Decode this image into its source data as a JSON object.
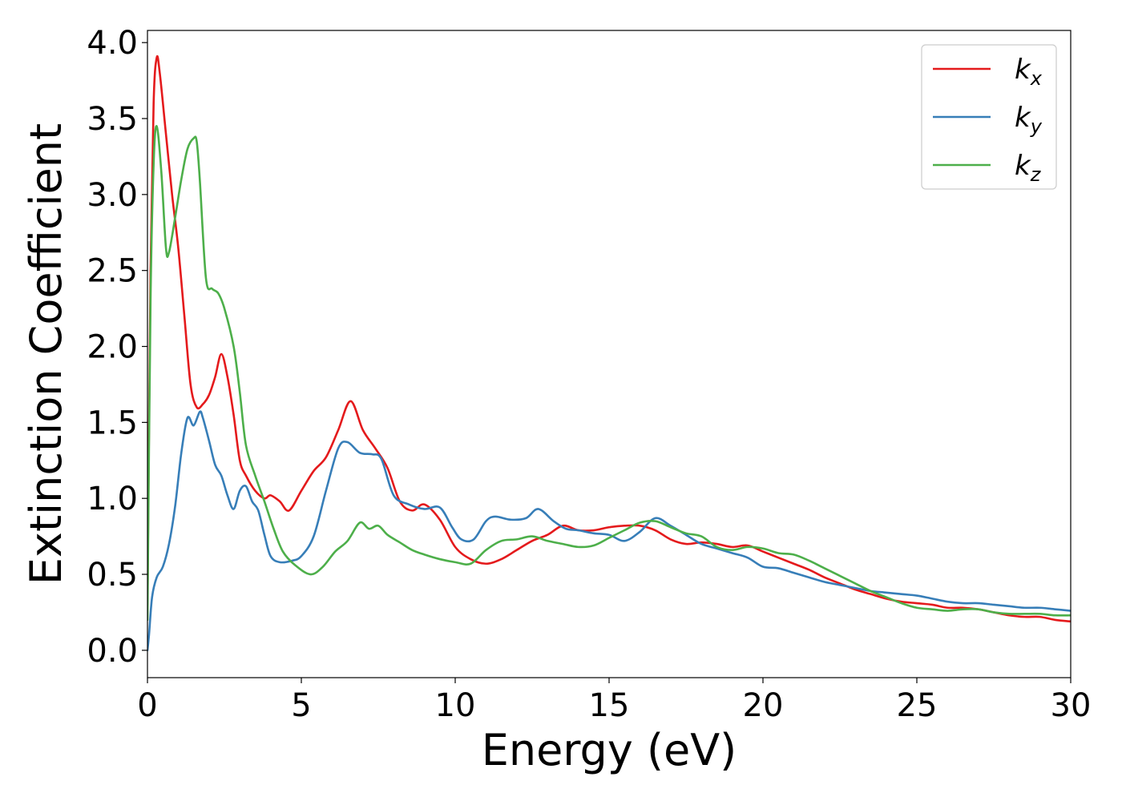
{
  "chart_data": {
    "type": "line",
    "title": "",
    "xlabel": "Energy (eV)",
    "ylabel": "Extinction Coefficient",
    "xlim": [
      0,
      30
    ],
    "ylim": [
      -0.18,
      4.08
    ],
    "xticks": [
      0,
      5,
      10,
      15,
      20,
      25,
      30
    ],
    "yticks": [
      0.0,
      0.5,
      1.0,
      1.5,
      2.0,
      2.5,
      3.0,
      3.5,
      4.0
    ],
    "xtick_labels": [
      "0",
      "5",
      "10",
      "15",
      "20",
      "25",
      "30"
    ],
    "ytick_labels": [
      "0.0",
      "0.5",
      "1.0",
      "1.5",
      "2.0",
      "2.5",
      "3.0",
      "3.5",
      "4.0"
    ],
    "grid": false,
    "legend_position": "top-right",
    "series": [
      {
        "name": "kx",
        "label_base": "k",
        "label_sub": "x",
        "color": "#e41a1c",
        "x": [
          0.0,
          0.1,
          0.2,
          0.3,
          0.4,
          0.6,
          0.8,
          1.0,
          1.2,
          1.4,
          1.6,
          1.8,
          2.0,
          2.2,
          2.4,
          2.6,
          2.8,
          3.0,
          3.2,
          3.5,
          3.8,
          4.0,
          4.3,
          4.6,
          5.0,
          5.4,
          5.8,
          6.2,
          6.6,
          7.0,
          7.4,
          7.8,
          8.2,
          8.6,
          9.0,
          9.5,
          10.0,
          10.5,
          11.0,
          11.5,
          12.0,
          12.5,
          13.0,
          13.5,
          14.0,
          14.5,
          15.0,
          15.5,
          16.0,
          16.5,
          17.0,
          17.5,
          18.0,
          18.5,
          19.0,
          19.5,
          20.0,
          20.5,
          21.0,
          21.5,
          22.0,
          22.5,
          23.0,
          23.5,
          24.0,
          24.5,
          25.0,
          25.5,
          26.0,
          26.5,
          27.0,
          27.5,
          28.0,
          28.5,
          29.0,
          29.5,
          30.0
        ],
        "y": [
          0.3,
          2.5,
          3.6,
          3.9,
          3.8,
          3.4,
          3.0,
          2.65,
          2.2,
          1.75,
          1.6,
          1.62,
          1.68,
          1.8,
          1.95,
          1.8,
          1.55,
          1.25,
          1.15,
          1.05,
          1.0,
          1.02,
          0.98,
          0.92,
          1.05,
          1.18,
          1.27,
          1.45,
          1.64,
          1.45,
          1.33,
          1.2,
          0.98,
          0.92,
          0.96,
          0.86,
          0.68,
          0.6,
          0.57,
          0.6,
          0.66,
          0.72,
          0.76,
          0.82,
          0.79,
          0.79,
          0.81,
          0.82,
          0.82,
          0.79,
          0.73,
          0.7,
          0.71,
          0.7,
          0.68,
          0.69,
          0.65,
          0.61,
          0.57,
          0.53,
          0.48,
          0.44,
          0.4,
          0.37,
          0.34,
          0.32,
          0.31,
          0.3,
          0.28,
          0.28,
          0.27,
          0.25,
          0.23,
          0.22,
          0.22,
          0.2,
          0.19
        ]
      },
      {
        "name": "ky",
        "label_base": "k",
        "label_sub": "y",
        "color": "#377eb8",
        "x": [
          0.0,
          0.05,
          0.15,
          0.3,
          0.5,
          0.7,
          0.9,
          1.1,
          1.3,
          1.5,
          1.7,
          1.8,
          2.0,
          2.2,
          2.4,
          2.6,
          2.8,
          3.0,
          3.2,
          3.4,
          3.6,
          3.8,
          4.0,
          4.3,
          4.7,
          5.0,
          5.4,
          5.8,
          6.2,
          6.5,
          6.9,
          7.3,
          7.6,
          8.0,
          8.5,
          9.0,
          9.5,
          9.9,
          10.2,
          10.6,
          11.0,
          11.3,
          11.8,
          12.3,
          12.7,
          13.2,
          13.6,
          14.0,
          14.5,
          15.0,
          15.5,
          16.0,
          16.5,
          17.0,
          17.5,
          18.0,
          18.5,
          19.0,
          19.5,
          20.0,
          20.5,
          21.0,
          21.5,
          22.0,
          22.5,
          23.0,
          23.5,
          24.0,
          24.5,
          25.0,
          25.5,
          26.0,
          26.5,
          27.0,
          27.5,
          28.0,
          28.5,
          29.0,
          29.5,
          30.0
        ],
        "y": [
          0.0,
          0.1,
          0.35,
          0.48,
          0.55,
          0.7,
          0.95,
          1.3,
          1.53,
          1.48,
          1.57,
          1.53,
          1.38,
          1.22,
          1.15,
          1.02,
          0.93,
          1.05,
          1.08,
          0.98,
          0.92,
          0.76,
          0.62,
          0.58,
          0.59,
          0.62,
          0.75,
          1.05,
          1.33,
          1.37,
          1.3,
          1.29,
          1.26,
          1.02,
          0.96,
          0.93,
          0.94,
          0.81,
          0.73,
          0.73,
          0.85,
          0.88,
          0.86,
          0.87,
          0.93,
          0.85,
          0.8,
          0.79,
          0.77,
          0.76,
          0.72,
          0.78,
          0.87,
          0.82,
          0.76,
          0.7,
          0.67,
          0.64,
          0.61,
          0.55,
          0.54,
          0.51,
          0.48,
          0.45,
          0.43,
          0.41,
          0.39,
          0.38,
          0.37,
          0.36,
          0.34,
          0.32,
          0.31,
          0.31,
          0.3,
          0.29,
          0.28,
          0.28,
          0.27,
          0.26
        ]
      },
      {
        "name": "kz",
        "label_base": "k",
        "label_sub": "z",
        "color": "#4daf4a",
        "x": [
          0.0,
          0.1,
          0.2,
          0.3,
          0.45,
          0.6,
          0.7,
          0.9,
          1.1,
          1.3,
          1.5,
          1.6,
          1.7,
          1.9,
          2.1,
          2.3,
          2.5,
          2.8,
          3.0,
          3.2,
          3.5,
          3.8,
          4.1,
          4.4,
          4.8,
          5.3,
          5.7,
          6.1,
          6.5,
          6.9,
          7.2,
          7.5,
          7.8,
          8.2,
          8.6,
          9.0,
          9.5,
          10.0,
          10.5,
          11.0,
          11.5,
          12.0,
          12.5,
          13.0,
          13.5,
          14.0,
          14.5,
          15.0,
          15.5,
          16.0,
          16.5,
          17.0,
          17.5,
          18.0,
          18.5,
          19.0,
          19.5,
          20.0,
          20.5,
          21.0,
          21.5,
          22.0,
          22.5,
          23.0,
          23.5,
          24.0,
          24.5,
          25.0,
          25.5,
          26.0,
          26.5,
          27.0,
          27.5,
          28.0,
          28.5,
          29.0,
          29.5,
          30.0
        ],
        "y": [
          0.2,
          2.3,
          3.2,
          3.45,
          3.15,
          2.65,
          2.62,
          2.85,
          3.1,
          3.3,
          3.37,
          3.35,
          3.1,
          2.45,
          2.38,
          2.35,
          2.25,
          2.0,
          1.7,
          1.35,
          1.15,
          0.98,
          0.8,
          0.65,
          0.56,
          0.5,
          0.55,
          0.65,
          0.72,
          0.84,
          0.8,
          0.82,
          0.76,
          0.71,
          0.66,
          0.63,
          0.6,
          0.58,
          0.57,
          0.66,
          0.72,
          0.73,
          0.75,
          0.72,
          0.7,
          0.68,
          0.69,
          0.74,
          0.79,
          0.84,
          0.85,
          0.81,
          0.77,
          0.75,
          0.68,
          0.66,
          0.68,
          0.67,
          0.64,
          0.63,
          0.59,
          0.54,
          0.49,
          0.44,
          0.39,
          0.35,
          0.31,
          0.28,
          0.27,
          0.26,
          0.27,
          0.27,
          0.25,
          0.24,
          0.24,
          0.24,
          0.23,
          0.23
        ]
      }
    ]
  }
}
